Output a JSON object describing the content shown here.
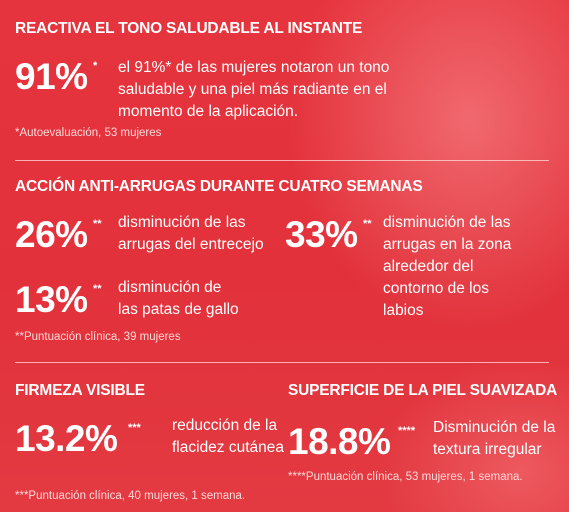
{
  "sections": [
    {
      "title": "REACTIVA EL TONO SALUDABLE AL INSTANTE",
      "stats": [
        {
          "value": "91%",
          "mark": "*",
          "lines": [
            "el 91%* de las mujeres notaron un tono",
            "saludable y una piel más radiante en el",
            "momento de la aplicación."
          ]
        }
      ],
      "footnote": "*Autoevaluación, 53 mujeres"
    },
    {
      "title": "ACCIÓN ANTI-ARRUGAS DURANTE CUATRO SEMANAS",
      "stats": [
        {
          "value": "26%",
          "mark": "**",
          "lines": [
            "disminución de las",
            "arrugas del entrecejo"
          ]
        },
        {
          "value": "33%",
          "mark": "**",
          "lines": [
            "disminución de las",
            "arrugas en la zona",
            "alrededor del",
            "contorno de los",
            "labios"
          ]
        },
        {
          "value": "13%",
          "mark": "**",
          "lines": [
            "disminución de",
            "las patas de gallo"
          ]
        }
      ],
      "footnote": "**Puntuación clínica, 39 mujeres"
    },
    {
      "title": "FIRMEZA VISIBLE",
      "stats": [
        {
          "value": "13.2%",
          "mark": "***",
          "lines": [
            "reducción de la",
            "flacidez cutánea"
          ]
        }
      ],
      "footnote": "***Puntuación clínica, 40 mujeres, 1 semana."
    },
    {
      "title": "SUPERFICIE DE LA PIEL SUAVIZADA",
      "stats": [
        {
          "value": "18.8%",
          "mark": "****",
          "lines": [
            "Disminución de la",
            "textura irregular"
          ]
        }
      ],
      "footnote": "****Puntuación clínica, 53 mujeres, 1 semana."
    }
  ]
}
